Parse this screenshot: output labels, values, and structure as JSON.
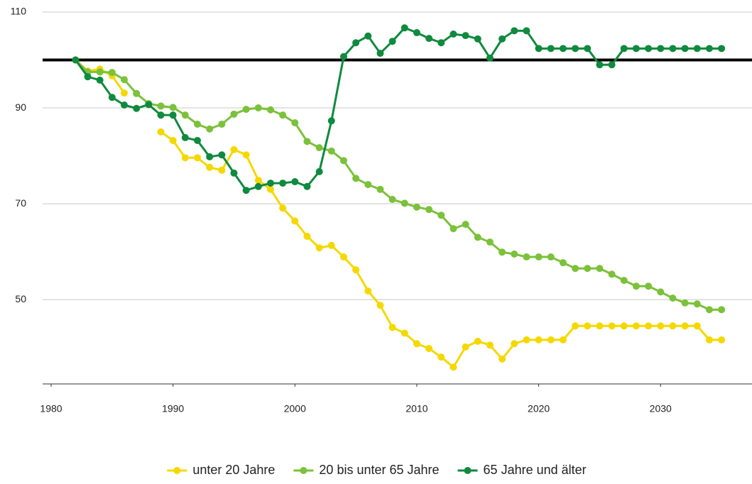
{
  "chart_data": {
    "type": "line",
    "x": [
      1982,
      1983,
      1984,
      1985,
      1986,
      1987,
      1988,
      1989,
      1990,
      1991,
      1992,
      1993,
      1994,
      1995,
      1996,
      1997,
      1998,
      1999,
      2000,
      2001,
      2002,
      2003,
      2004,
      2005,
      2006,
      2007,
      2008,
      2009,
      2010,
      2011,
      2012,
      2013,
      2014,
      2015,
      2016,
      2017,
      2018,
      2019,
      2020,
      2021,
      2022,
      2023,
      2024,
      2025,
      2026,
      2027,
      2028,
      2029,
      2030,
      2031,
      2032,
      2033,
      2034,
      2035
    ],
    "series": [
      {
        "name": "unter 20 Jahre",
        "color": "#f5d800",
        "values": [
          100,
          97.7,
          98.1,
          96.7,
          93.1,
          null,
          null,
          85,
          83.2,
          79.6,
          79.6,
          77.6,
          77,
          81.3,
          80.2,
          74.9,
          73,
          69.1,
          66.4,
          63.2,
          60.8,
          61.3,
          58.9,
          56.2,
          51.8,
          48.8,
          44.2,
          43,
          40.8,
          39.8,
          38,
          35.9,
          40.1,
          41.3,
          40.5,
          37.6,
          40.8,
          41.6,
          41.6,
          41.6,
          41.6,
          44.5,
          44.5,
          44.5,
          44.5,
          44.5,
          44.5,
          44.5,
          44.5,
          44.5,
          44.5,
          44.5,
          41.6,
          41.6
        ]
      },
      {
        "name": "20 bis unter 65 Jahre",
        "color": "#7bc13a",
        "values": [
          100,
          97.5,
          97.5,
          97.4,
          95.9,
          93,
          90.9,
          90.4,
          90.1,
          88.5,
          86.6,
          85.6,
          86.6,
          88.7,
          89.7,
          90,
          89.6,
          88.5,
          86.9,
          83,
          81.7,
          81,
          79,
          75.3,
          74,
          73,
          70.9,
          70.1,
          69.3,
          68.8,
          67.6,
          64.8,
          65.7,
          63,
          62,
          59.9,
          59.5,
          58.9,
          58.9,
          58.9,
          57.7,
          56.5,
          56.5,
          56.5,
          55.3,
          54,
          52.8,
          52.8,
          51.6,
          50.3,
          49.3,
          49.1,
          47.9,
          47.9
        ]
      },
      {
        "name": "65 Jahre und älter",
        "color": "#0f8a3e",
        "values": [
          100,
          96.5,
          95.8,
          92.2,
          90.6,
          89.9,
          90.7,
          88.5,
          88.5,
          83.8,
          83.2,
          79.8,
          80.2,
          76.4,
          72.8,
          73.6,
          74.3,
          74.3,
          74.6,
          73.6,
          76.7,
          87.3,
          100.7,
          103.6,
          105,
          101.4,
          103.9,
          106.7,
          105.7,
          104.5,
          103.6,
          105.4,
          105.1,
          104.4,
          100.4,
          104.4,
          106.1,
          106.1,
          102.4,
          102.4,
          102.4,
          102.4,
          102.4,
          99,
          99,
          102.4,
          102.4,
          102.4,
          102.4,
          102.4,
          102.4,
          102.4,
          102.4,
          102.4
        ]
      }
    ],
    "reference_line": 100,
    "xlim": [
      1979.3,
      2037.5
    ],
    "xticks": [
      1980,
      1990,
      2000,
      2010,
      2020,
      2030
    ],
    "ylim": [
      32.4,
      110
    ],
    "yticks": [
      50,
      70,
      90,
      110
    ],
    "grid": true,
    "legend": "bottom"
  }
}
